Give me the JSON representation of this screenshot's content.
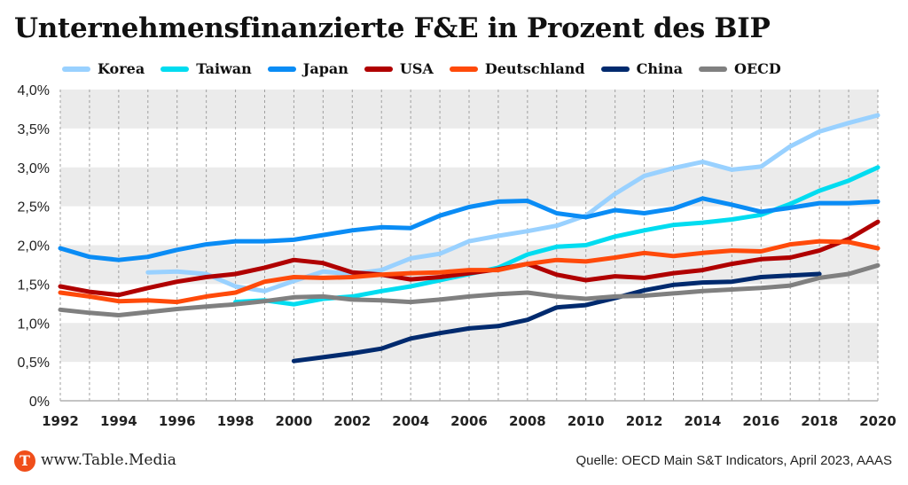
{
  "chart_data": {
    "type": "line",
    "title": "Unternehmensfinanzierte F&E in Prozent des BIP",
    "xlabel": "",
    "ylabel": "",
    "x": [
      1992,
      1993,
      1994,
      1995,
      1996,
      1997,
      1998,
      1999,
      2000,
      2001,
      2002,
      2003,
      2004,
      2005,
      2006,
      2007,
      2008,
      2009,
      2010,
      2011,
      2012,
      2013,
      2014,
      2015,
      2016,
      2017,
      2018,
      2019,
      2020
    ],
    "xlim": [
      1992,
      2020
    ],
    "ylim": [
      0,
      4
    ],
    "x_ticks": [
      "1992",
      "1994",
      "1996",
      "1998",
      "2000",
      "2002",
      "2004",
      "2006",
      "2008",
      "2010",
      "2012",
      "2014",
      "2016",
      "2018",
      "2020"
    ],
    "y_ticks": [
      {
        "v": 0,
        "label": "0%"
      },
      {
        "v": 0.5,
        "label": "0,5%"
      },
      {
        "v": 1,
        "label": "1,0%"
      },
      {
        "v": 1.5,
        "label": "1,5%"
      },
      {
        "v": 2,
        "label": "2,0%"
      },
      {
        "v": 2.5,
        "label": "2,5%"
      },
      {
        "v": 3,
        "label": "3,0%"
      },
      {
        "v": 3.5,
        "label": "3,5%"
      },
      {
        "v": 4,
        "label": "4,0%"
      }
    ],
    "grid": "alternating horizontal bands, vertical dashed lines per year",
    "legend_position": "top",
    "series": [
      {
        "name": "Korea",
        "color": "#99d1ff",
        "values": [
          null,
          null,
          null,
          1.65,
          1.66,
          1.63,
          1.47,
          1.41,
          1.54,
          1.66,
          1.63,
          1.68,
          1.83,
          1.89,
          2.05,
          2.12,
          2.18,
          2.25,
          2.38,
          2.66,
          2.89,
          2.99,
          3.07,
          2.97,
          3.01,
          3.27,
          3.46,
          3.57,
          3.67
        ]
      },
      {
        "name": "Taiwan",
        "color": "#00dcf0",
        "values": [
          null,
          null,
          null,
          null,
          null,
          null,
          1.27,
          1.29,
          1.24,
          1.31,
          1.34,
          1.41,
          1.47,
          1.55,
          1.63,
          1.71,
          1.88,
          1.98,
          2.0,
          2.11,
          2.19,
          2.26,
          2.29,
          2.33,
          2.39,
          2.53,
          2.7,
          2.83,
          3.0
        ]
      },
      {
        "name": "Japan",
        "color": "#0a8cf5",
        "values": [
          1.96,
          1.85,
          1.81,
          1.85,
          1.94,
          2.01,
          2.05,
          2.05,
          2.07,
          2.13,
          2.19,
          2.23,
          2.22,
          2.38,
          2.49,
          2.56,
          2.57,
          2.41,
          2.36,
          2.45,
          2.41,
          2.47,
          2.6,
          2.52,
          2.43,
          2.48,
          2.54,
          2.54,
          2.56
        ]
      },
      {
        "name": "USA",
        "color": "#b00000",
        "values": [
          1.47,
          1.4,
          1.36,
          1.45,
          1.53,
          1.59,
          1.63,
          1.71,
          1.81,
          1.77,
          1.65,
          1.62,
          1.56,
          1.59,
          1.64,
          1.69,
          1.76,
          1.62,
          1.55,
          1.6,
          1.58,
          1.64,
          1.68,
          1.76,
          1.82,
          1.84,
          1.93,
          2.08,
          2.3
        ]
      },
      {
        "name": "Deutschland",
        "color": "#ff4a0a",
        "values": [
          1.39,
          1.34,
          1.28,
          1.29,
          1.27,
          1.34,
          1.39,
          1.53,
          1.59,
          1.58,
          1.59,
          1.62,
          1.64,
          1.65,
          1.68,
          1.68,
          1.76,
          1.81,
          1.79,
          1.84,
          1.9,
          1.86,
          1.9,
          1.93,
          1.92,
          2.01,
          2.05,
          2.04,
          1.96
        ]
      },
      {
        "name": "China",
        "color": "#002a6e",
        "values": [
          null,
          null,
          null,
          null,
          null,
          null,
          null,
          null,
          0.51,
          0.56,
          0.61,
          0.67,
          0.8,
          0.87,
          0.93,
          0.96,
          1.04,
          1.2,
          1.23,
          1.32,
          1.42,
          1.49,
          1.52,
          1.53,
          1.59,
          1.61,
          1.63,
          null,
          null
        ]
      },
      {
        "name": "OECD",
        "color": "#808080",
        "values": [
          1.17,
          1.13,
          1.1,
          1.14,
          1.18,
          1.21,
          1.24,
          1.28,
          1.33,
          1.34,
          1.3,
          1.29,
          1.27,
          1.3,
          1.34,
          1.37,
          1.39,
          1.34,
          1.31,
          1.34,
          1.35,
          1.38,
          1.41,
          1.43,
          1.45,
          1.48,
          1.58,
          1.63,
          1.74
        ]
      }
    ]
  },
  "legend": [
    {
      "label": "Korea",
      "color": "#99d1ff"
    },
    {
      "label": "Taiwan",
      "color": "#00dcf0"
    },
    {
      "label": "Japan",
      "color": "#0a8cf5"
    },
    {
      "label": "USA",
      "color": "#b00000"
    },
    {
      "label": "Deutschland",
      "color": "#ff4a0a"
    },
    {
      "label": "China",
      "color": "#002a6e"
    },
    {
      "label": "OECD",
      "color": "#808080"
    }
  ],
  "footer": {
    "logo_letter": "T",
    "site": "www.Table.Media",
    "source": "Quelle: OECD Main S&T Indicators, April 2023, AAAS"
  }
}
